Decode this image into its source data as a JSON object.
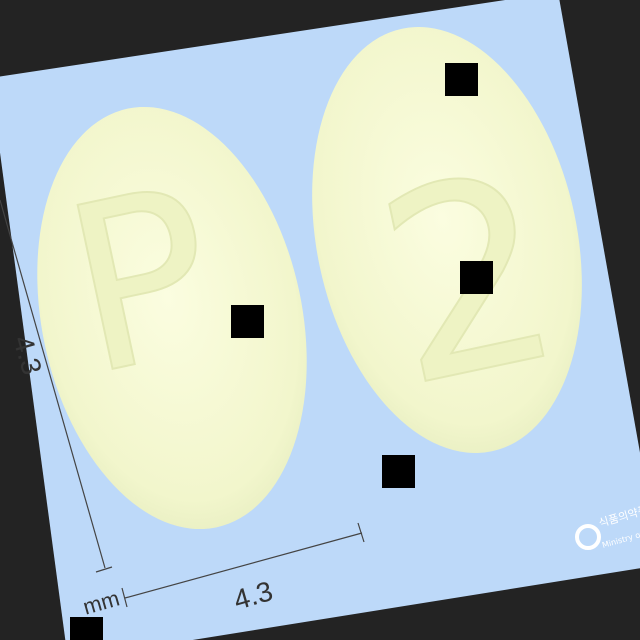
{
  "imprints": [
    "P",
    "2"
  ],
  "dimensions": {
    "height": "4.3",
    "width": "4.3",
    "unit": "mm"
  },
  "logo": {
    "korean": "식품의약품",
    "english": "Ministry of Fo"
  }
}
